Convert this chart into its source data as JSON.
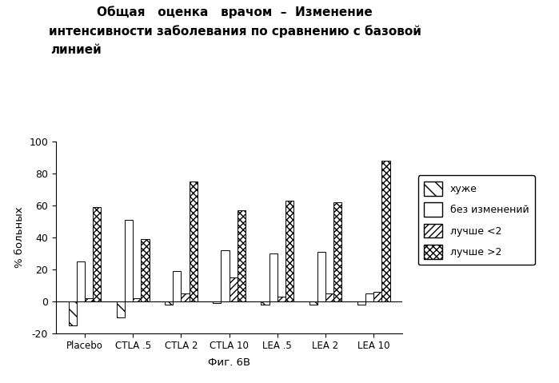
{
  "title_line1": "Общая   оценка   врачом  –  Изменение",
  "title_line2": "интенсивности заболевания по сравнению с базовой",
  "title_line3": "линией",
  "xlabel_bottom": "Фиг. 6В",
  "ylabel": "% больных",
  "categories": [
    "Placebo",
    "CTLA .5",
    "CTLA 2",
    "CTLA 10",
    "LEA .5",
    "LEA 2",
    "LEA 10"
  ],
  "series_labels": [
    "хуже",
    "без изменений",
    "лучше <2",
    "лучше >2"
  ],
  "data": {
    "worse": [
      -15,
      -10,
      -2,
      -1,
      -2,
      -2,
      -2
    ],
    "no_change": [
      25,
      51,
      19,
      32,
      30,
      31,
      5
    ],
    "better_lt2": [
      2,
      2,
      5,
      15,
      3,
      5,
      6
    ],
    "better_gt2": [
      59,
      39,
      75,
      57,
      63,
      62,
      88
    ]
  },
  "ylim": [
    -20,
    100
  ],
  "yticks": [
    -20,
    0,
    20,
    40,
    60,
    80,
    100
  ],
  "background_color": "#ffffff",
  "bar_width": 0.17,
  "figsize": [
    6.99,
    4.79
  ],
  "dpi": 100
}
